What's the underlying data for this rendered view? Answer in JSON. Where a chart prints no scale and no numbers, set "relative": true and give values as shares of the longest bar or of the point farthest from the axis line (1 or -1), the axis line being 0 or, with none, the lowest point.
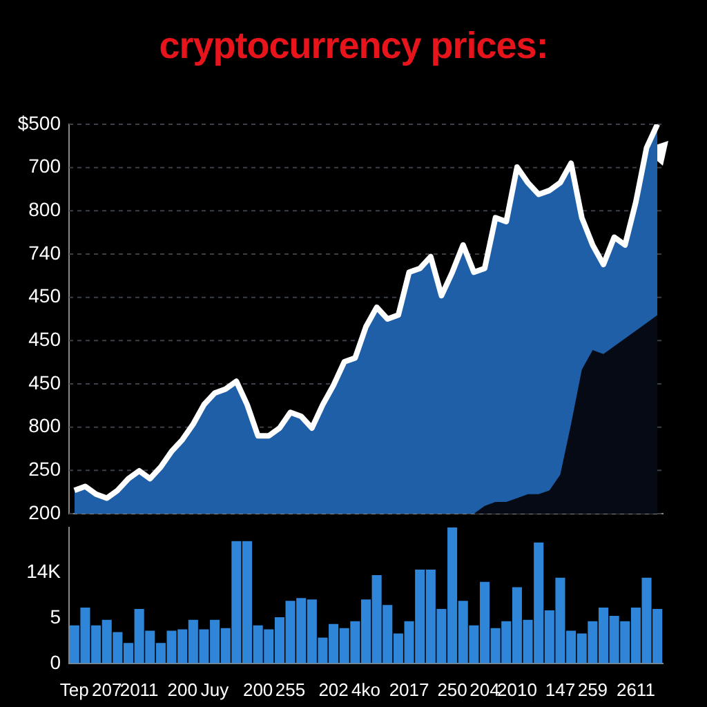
{
  "chart_data": [
    {
      "type": "area",
      "title": "cryptocurrency prices:",
      "relative": true,
      "tick_labels": false,
      "grid": "y",
      "legend": false,
      "annotations": [
        "$500",
        "700",
        "800",
        "740",
        "450",
        "450",
        "450",
        "800",
        "250",
        "200"
      ],
      "categories": [
        null,
        null,
        null,
        null,
        null,
        null,
        null,
        null,
        null,
        null,
        null,
        null,
        null,
        null,
        null,
        null,
        null,
        null,
        null,
        null,
        null,
        null,
        null,
        null,
        null,
        null,
        null,
        null,
        null,
        null,
        null,
        null,
        null,
        null,
        null,
        null,
        null,
        null,
        null,
        null,
        null,
        null,
        null,
        null,
        null,
        null,
        null,
        null,
        null,
        null,
        null,
        null,
        null,
        null,
        null
      ],
      "series": [
        {
          "color": "#1f5fa8",
          "values": [
            0.06,
            0.07,
            0.05,
            0.04,
            0.06,
            0.09,
            0.11,
            0.09,
            0.12,
            0.16,
            0.19,
            0.23,
            0.28,
            0.31,
            0.32,
            0.34,
            0.28,
            0.2,
            0.2,
            0.22,
            0.26,
            0.25,
            0.22,
            0.28,
            0.33,
            0.39,
            0.4,
            0.48,
            0.53,
            0.5,
            0.51,
            0.62,
            0.63,
            0.66,
            0.56,
            0.62,
            0.69,
            0.62,
            0.63,
            0.76,
            0.75,
            0.89,
            0.85,
            0.82,
            0.83,
            0.85,
            0.9,
            0.76,
            0.69,
            0.64,
            0.71,
            0.69,
            0.8,
            0.94,
            1
          ]
        },
        {
          "color": "#050a14",
          "values": [
            null,
            null,
            null,
            null,
            null,
            null,
            null,
            null,
            null,
            null,
            null,
            null,
            null,
            null,
            null,
            null,
            null,
            null,
            null,
            null,
            null,
            null,
            null,
            null,
            null,
            null,
            null,
            null,
            null,
            null,
            null,
            null,
            null,
            null,
            null,
            null,
            null,
            0,
            0.02,
            0.03,
            0.03,
            0.04,
            0.05,
            0.05,
            0.06,
            0.1,
            0.23,
            0.37,
            0.42,
            0.41,
            0.43,
            0.45,
            0.47,
            0.49,
            0.51
          ]
        }
      ]
    },
    {
      "type": "bar",
      "relative": true,
      "tick_labels": "x",
      "legend": false,
      "color": "#2f86d8",
      "annotations": [
        "14K",
        "5",
        "0"
      ],
      "categories": [
        "Tep",
        null,
        null,
        "207",
        null,
        null,
        "2011",
        null,
        null,
        null,
        "200",
        null,
        null,
        "Juy",
        null,
        null,
        null,
        "200",
        null,
        null,
        "255",
        null,
        null,
        null,
        "202",
        null,
        null,
        "4ko",
        null,
        null,
        null,
        "2017",
        null,
        null,
        null,
        "250",
        null,
        null,
        "204",
        null,
        null,
        "2010",
        null,
        null,
        null,
        "147",
        null,
        null,
        "259",
        null,
        null,
        null,
        "2611",
        null,
        null
      ],
      "values": [
        0.28,
        0.41,
        0.28,
        0.32,
        0.23,
        0.15,
        0.4,
        0.24,
        0.15,
        0.24,
        0.25,
        0.32,
        0.25,
        0.32,
        0.26,
        0.9,
        0.9,
        0.28,
        0.25,
        0.34,
        0.46,
        0.48,
        0.47,
        0.19,
        0.29,
        0.26,
        0.31,
        0.47,
        0.65,
        0.43,
        0.22,
        0.31,
        0.69,
        0.69,
        0.4,
        1,
        0.46,
        0.28,
        0.6,
        0.26,
        0.31,
        0.56,
        0.32,
        0.89,
        0.39,
        0.63,
        0.24,
        0.22,
        0.31,
        0.41,
        0.35,
        0.31,
        0.41,
        0.63,
        0.4
      ]
    }
  ]
}
